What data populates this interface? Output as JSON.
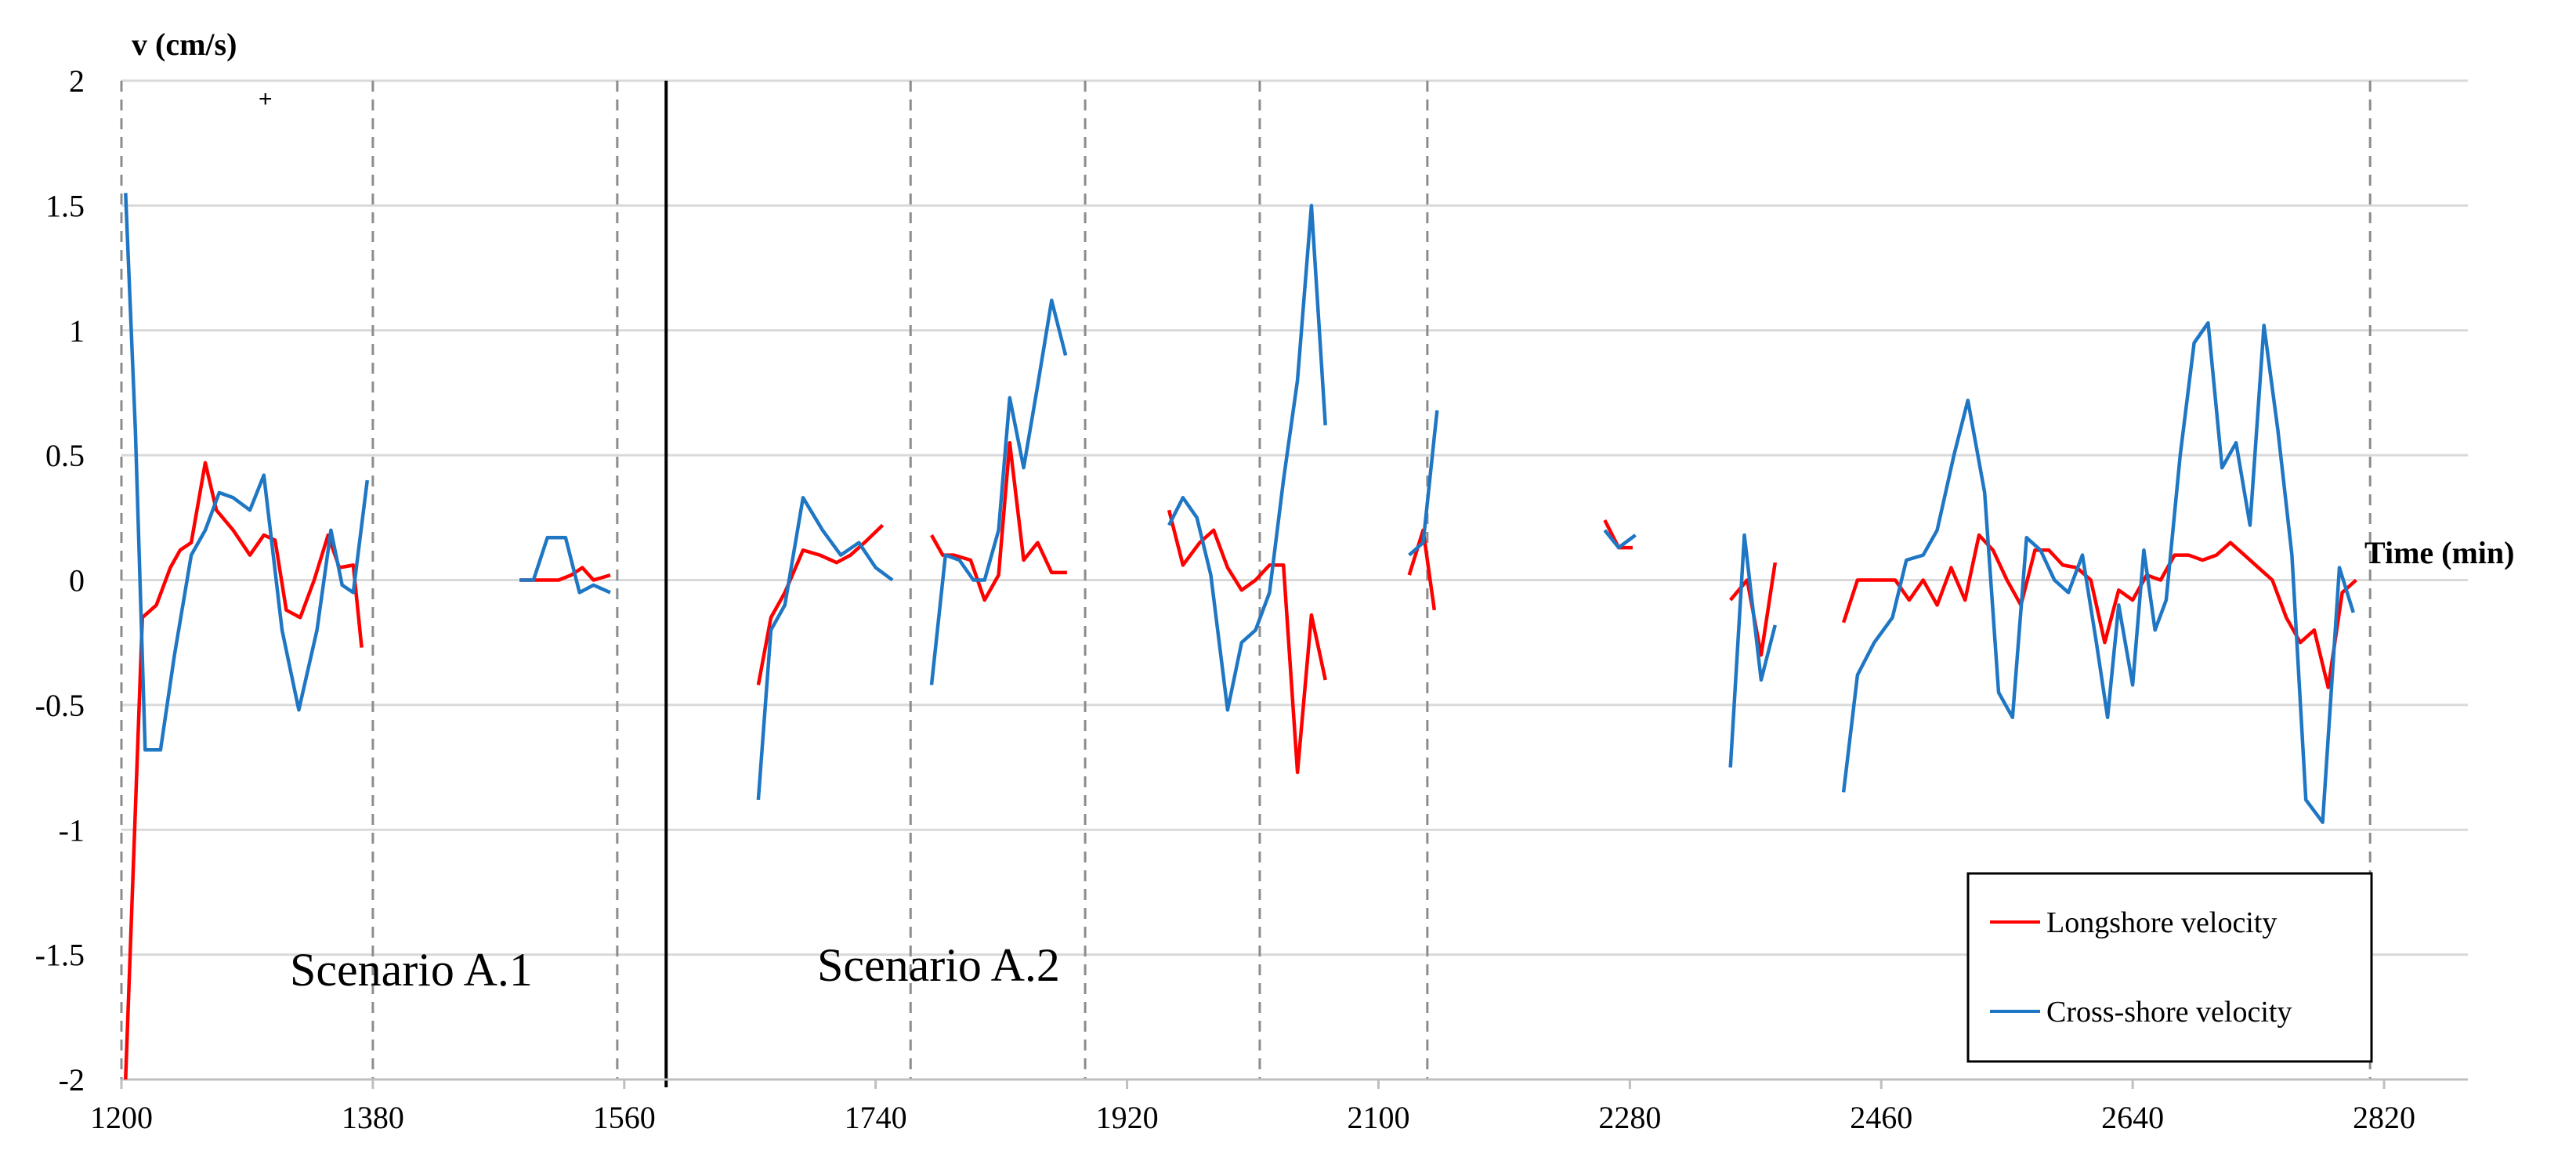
{
  "chart_data": {
    "type": "line",
    "ylabel": "v (cm/s)",
    "xlabel": "Time (min)",
    "xlim": [
      1200,
      2880
    ],
    "ylim": [
      -2,
      2
    ],
    "x_ticks": [
      1200,
      1380,
      1560,
      1740,
      1920,
      2100,
      2280,
      2460,
      2640,
      2820
    ],
    "y_ticks": [
      2,
      1.5,
      1,
      0.5,
      0,
      -0.5,
      -1,
      -1.5,
      -2
    ],
    "grid": "horizontal",
    "dashed_verticals": [
      1200,
      1380,
      1555,
      1765,
      1890,
      2015,
      2135,
      2810
    ],
    "solid_vertical": 1590,
    "annotations": [
      {
        "text": "Scenario A.1",
        "x": 1330,
        "y": -1.6
      },
      {
        "text": "Scenario A.2",
        "x": 1690,
        "y": -1.6
      }
    ],
    "legend_position": "bottom-right",
    "series": [
      {
        "name": "Longshore velocity",
        "color": "#ff0000",
        "segments": [
          [
            [
              1203,
              -2.0
            ],
            [
              1215,
              -0.15
            ],
            [
              1225,
              -0.1
            ],
            [
              1235,
              0.05
            ],
            [
              1242,
              0.12
            ],
            [
              1250,
              0.15
            ],
            [
              1260,
              0.47
            ],
            [
              1268,
              0.28
            ],
            [
              1280,
              0.2
            ],
            [
              1292,
              0.1
            ],
            [
              1302,
              0.18
            ],
            [
              1310,
              0.16
            ],
            [
              1318,
              -0.12
            ],
            [
              1328,
              -0.15
            ],
            [
              1338,
              0.0
            ],
            [
              1348,
              0.18
            ],
            [
              1356,
              0.05
            ],
            [
              1366,
              0.06
            ],
            [
              1372,
              -0.27
            ]
          ],
          [
            [
              1485,
              0.0
            ],
            [
              1500,
              0.0
            ],
            [
              1513,
              0.0
            ],
            [
              1522,
              0.02
            ],
            [
              1530,
              0.05
            ],
            [
              1538,
              0.0
            ],
            [
              1550,
              0.02
            ]
          ],
          [
            [
              1656,
              -0.42
            ],
            [
              1665,
              -0.15
            ],
            [
              1675,
              -0.05
            ],
            [
              1688,
              0.12
            ],
            [
              1700,
              0.1
            ],
            [
              1712,
              0.07
            ],
            [
              1722,
              0.1
            ],
            [
              1732,
              0.15
            ],
            [
              1745,
              0.22
            ]
          ],
          [
            [
              1780,
              0.18
            ],
            [
              1788,
              0.1
            ],
            [
              1796,
              0.1
            ],
            [
              1808,
              0.08
            ],
            [
              1818,
              -0.08
            ],
            [
              1828,
              0.02
            ],
            [
              1836,
              0.55
            ],
            [
              1846,
              0.08
            ],
            [
              1856,
              0.15
            ],
            [
              1866,
              0.03
            ],
            [
              1877,
              0.03
            ]
          ],
          [
            [
              1950,
              0.28
            ],
            [
              1960,
              0.06
            ],
            [
              1972,
              0.15
            ],
            [
              1982,
              0.2
            ],
            [
              1992,
              0.05
            ],
            [
              2002,
              -0.04
            ],
            [
              2012,
              0.0
            ],
            [
              2022,
              0.06
            ],
            [
              2032,
              0.06
            ],
            [
              2042,
              -0.77
            ],
            [
              2052,
              -0.14
            ],
            [
              2062,
              -0.4
            ]
          ],
          [
            [
              2122,
              0.02
            ],
            [
              2132,
              0.2
            ],
            [
              2140,
              -0.12
            ]
          ],
          [
            [
              2262,
              0.24
            ],
            [
              2272,
              0.13
            ],
            [
              2282,
              0.13
            ]
          ],
          [
            [
              2352,
              -0.08
            ],
            [
              2364,
              0.0
            ],
            [
              2374,
              -0.3
            ],
            [
              2384,
              0.07
            ]
          ],
          [
            [
              2433,
              -0.17
            ],
            [
              2443,
              0.0
            ],
            [
              2460,
              0.0
            ],
            [
              2470,
              0.0
            ],
            [
              2480,
              -0.08
            ],
            [
              2490,
              0.0
            ],
            [
              2500,
              -0.1
            ],
            [
              2510,
              0.05
            ],
            [
              2520,
              -0.08
            ],
            [
              2530,
              0.18
            ],
            [
              2540,
              0.12
            ],
            [
              2550,
              0.0
            ],
            [
              2560,
              -0.1
            ],
            [
              2570,
              0.12
            ],
            [
              2580,
              0.12
            ],
            [
              2590,
              0.06
            ],
            [
              2600,
              0.05
            ],
            [
              2610,
              0.0
            ],
            [
              2620,
              -0.25
            ],
            [
              2630,
              -0.04
            ],
            [
              2640,
              -0.08
            ],
            [
              2650,
              0.02
            ],
            [
              2660,
              0.0
            ],
            [
              2670,
              0.1
            ],
            [
              2680,
              0.1
            ],
            [
              2690,
              0.08
            ],
            [
              2700,
              0.1
            ],
            [
              2710,
              0.15
            ],
            [
              2720,
              0.1
            ],
            [
              2730,
              0.05
            ],
            [
              2740,
              0.0
            ],
            [
              2750,
              -0.15
            ],
            [
              2760,
              -0.25
            ],
            [
              2770,
              -0.2
            ],
            [
              2780,
              -0.43
            ],
            [
              2790,
              -0.05
            ],
            [
              2800,
              0.0
            ]
          ]
        ]
      },
      {
        "name": "Cross-shore velocity",
        "color": "#1f77c4",
        "segments": [
          [
            [
              1203,
              1.55
            ],
            [
              1210,
              0.6
            ],
            [
              1217,
              -0.68
            ],
            [
              1228,
              -0.68
            ],
            [
              1238,
              -0.3
            ],
            [
              1250,
              0.1
            ],
            [
              1260,
              0.2
            ],
            [
              1270,
              0.35
            ],
            [
              1280,
              0.33
            ],
            [
              1292,
              0.28
            ],
            [
              1302,
              0.42
            ],
            [
              1315,
              -0.2
            ],
            [
              1327,
              -0.52
            ],
            [
              1340,
              -0.2
            ],
            [
              1350,
              0.2
            ],
            [
              1358,
              -0.02
            ],
            [
              1366,
              -0.05
            ],
            [
              1376,
              0.4
            ]
          ],
          [
            [
              1485,
              0.0
            ],
            [
              1495,
              0.0
            ],
            [
              1505,
              0.17
            ],
            [
              1518,
              0.17
            ],
            [
              1528,
              -0.05
            ],
            [
              1538,
              -0.02
            ],
            [
              1550,
              -0.05
            ]
          ],
          [
            [
              1656,
              -0.88
            ],
            [
              1665,
              -0.2
            ],
            [
              1675,
              -0.1
            ],
            [
              1688,
              0.33
            ],
            [
              1702,
              0.2
            ],
            [
              1715,
              0.1
            ],
            [
              1728,
              0.15
            ],
            [
              1740,
              0.05
            ],
            [
              1752,
              0.0
            ]
          ],
          [
            [
              1780,
              -0.42
            ],
            [
              1790,
              0.1
            ],
            [
              1800,
              0.08
            ],
            [
              1810,
              0.0
            ],
            [
              1818,
              0.0
            ],
            [
              1828,
              0.2
            ],
            [
              1836,
              0.73
            ],
            [
              1846,
              0.45
            ],
            [
              1856,
              0.78
            ],
            [
              1866,
              1.12
            ],
            [
              1876,
              0.9
            ]
          ],
          [
            [
              1950,
              0.22
            ],
            [
              1960,
              0.33
            ],
            [
              1970,
              0.25
            ],
            [
              1980,
              0.02
            ],
            [
              1992,
              -0.52
            ],
            [
              2002,
              -0.25
            ],
            [
              2012,
              -0.2
            ],
            [
              2022,
              -0.05
            ],
            [
              2032,
              0.4
            ],
            [
              2042,
              0.8
            ],
            [
              2052,
              1.5
            ],
            [
              2062,
              0.62
            ]
          ],
          [
            [
              2122,
              0.1
            ],
            [
              2132,
              0.15
            ],
            [
              2142,
              0.68
            ]
          ],
          [
            [
              2262,
              0.2
            ],
            [
              2272,
              0.13
            ],
            [
              2284,
              0.18
            ]
          ],
          [
            [
              2352,
              -0.75
            ],
            [
              2362,
              0.18
            ],
            [
              2374,
              -0.4
            ],
            [
              2384,
              -0.18
            ]
          ],
          [
            [
              2433,
              -0.85
            ],
            [
              2443,
              -0.38
            ],
            [
              2455,
              -0.25
            ],
            [
              2468,
              -0.15
            ],
            [
              2478,
              0.08
            ],
            [
              2490,
              0.1
            ],
            [
              2500,
              0.2
            ],
            [
              2512,
              0.5
            ],
            [
              2522,
              0.72
            ],
            [
              2534,
              0.35
            ],
            [
              2544,
              -0.45
            ],
            [
              2554,
              -0.55
            ],
            [
              2564,
              0.17
            ],
            [
              2574,
              0.12
            ],
            [
              2584,
              0.0
            ],
            [
              2594,
              -0.05
            ],
            [
              2604,
              0.1
            ],
            [
              2614,
              -0.25
            ],
            [
              2622,
              -0.55
            ],
            [
              2630,
              -0.1
            ],
            [
              2640,
              -0.42
            ],
            [
              2648,
              0.12
            ],
            [
              2656,
              -0.2
            ],
            [
              2664,
              -0.08
            ],
            [
              2674,
              0.5
            ],
            [
              2684,
              0.95
            ],
            [
              2694,
              1.03
            ],
            [
              2704,
              0.45
            ],
            [
              2714,
              0.55
            ],
            [
              2724,
              0.22
            ],
            [
              2734,
              1.02
            ],
            [
              2744,
              0.6
            ],
            [
              2754,
              0.1
            ],
            [
              2764,
              -0.88
            ],
            [
              2776,
              -0.97
            ],
            [
              2788,
              0.05
            ],
            [
              2798,
              -0.13
            ]
          ]
        ]
      }
    ]
  }
}
